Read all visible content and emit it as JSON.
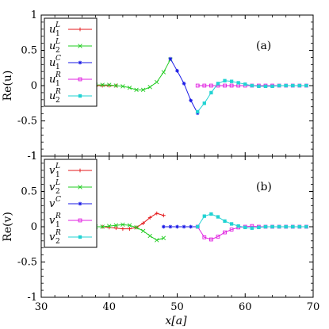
{
  "figure": {
    "xlabel": "x[a]",
    "panels": [
      {
        "tag": "(a)",
        "ylabel": "Re(u)"
      },
      {
        "tag": "(b)",
        "ylabel": "Re(v)"
      }
    ]
  },
  "chart_data": [
    {
      "type": "line",
      "panel_label": "(a)",
      "xlabel": "x[a]",
      "ylabel": "Re(u)",
      "xlim": [
        30,
        70
      ],
      "ylim": [
        -1,
        1
      ],
      "xticks": [
        "30",
        "40",
        "50",
        "60",
        "70"
      ],
      "yticks": [
        "1",
        "0.5",
        "0",
        "-0.5",
        "-1"
      ],
      "grid": false,
      "legend_position": "top-left",
      "series": [
        {
          "name": "u1L",
          "label_base": "u",
          "label_sub": "1",
          "label_sup": "L",
          "color": "#e41a1c",
          "marker": "plus",
          "x": [
            37,
            38,
            39,
            40,
            41
          ],
          "y": [
            0.0,
            0.0,
            0.0,
            0.0,
            0.0
          ]
        },
        {
          "name": "u2L",
          "label_base": "u",
          "label_sub": "2",
          "label_sup": "L",
          "color": "#22cc22",
          "marker": "x",
          "x": [
            37,
            38,
            39,
            40,
            41,
            42,
            43,
            44,
            45,
            46,
            47,
            48,
            49
          ],
          "y": [
            0.01,
            0.01,
            0.01,
            0.01,
            0.0,
            -0.01,
            -0.03,
            -0.06,
            -0.06,
            -0.02,
            0.05,
            0.19,
            0.37
          ]
        },
        {
          "name": "u1C",
          "label_base": "u",
          "label_sub": "1",
          "label_sup": "C",
          "color": "#1a1ae6",
          "marker": "asterisk",
          "x": [
            49,
            50,
            51,
            52,
            53
          ],
          "y": [
            0.38,
            0.21,
            0.03,
            -0.21,
            -0.39
          ]
        },
        {
          "name": "u1R",
          "label_base": "u",
          "label_sub": "1",
          "label_sup": "R",
          "color": "#e020e0",
          "marker": "square",
          "x": [
            53,
            54,
            55,
            56,
            57,
            58,
            59,
            60,
            61,
            62,
            63,
            64,
            65,
            66,
            67,
            68,
            69
          ],
          "y": [
            0.0,
            0.0,
            0.0,
            0.0,
            0.0,
            0.0,
            0.0,
            0.0,
            0.0,
            0.0,
            0.0,
            0.0,
            0.0,
            0.0,
            0.0,
            0.0,
            0.0
          ]
        },
        {
          "name": "u2R",
          "label_base": "u",
          "label_sub": "2",
          "label_sup": "R",
          "color": "#22d3d3",
          "marker": "filled-square",
          "x": [
            53,
            54,
            55,
            56,
            57,
            58,
            59,
            60,
            61,
            62,
            63,
            64,
            65,
            66,
            67,
            68,
            69
          ],
          "y": [
            -0.37,
            -0.25,
            -0.1,
            0.03,
            0.07,
            0.06,
            0.04,
            0.02,
            0.0,
            -0.01,
            -0.01,
            -0.01,
            0.0,
            0.0,
            0.0,
            0.0,
            0.0
          ]
        }
      ]
    },
    {
      "type": "line",
      "panel_label": "(b)",
      "xlabel": "x[a]",
      "ylabel": "Re(v)",
      "xlim": [
        30,
        70
      ],
      "ylim": [
        -1,
        1
      ],
      "xticks": [
        "30",
        "40",
        "50",
        "60",
        "70"
      ],
      "yticks": [
        "1",
        "0.5",
        "0",
        "-0.5",
        "-1"
      ],
      "grid": false,
      "legend_position": "top-left",
      "series": [
        {
          "name": "v1L",
          "label_base": "v",
          "label_sub": "1",
          "label_sup": "L",
          "color": "#e41a1c",
          "marker": "plus",
          "x": [
            37,
            38,
            39,
            40,
            41,
            42,
            43,
            44,
            45,
            46,
            47,
            48
          ],
          "y": [
            0.0,
            0.0,
            0.0,
            -0.01,
            -0.02,
            -0.03,
            -0.03,
            -0.01,
            0.05,
            0.13,
            0.19,
            0.16
          ]
        },
        {
          "name": "v2L",
          "label_base": "v",
          "label_sub": "2",
          "label_sup": "L",
          "color": "#22cc22",
          "marker": "x",
          "x": [
            37,
            38,
            39,
            40,
            41,
            42,
            43,
            44,
            45,
            46,
            47,
            48
          ],
          "y": [
            0.0,
            0.0,
            0.0,
            0.01,
            0.02,
            0.03,
            0.02,
            -0.01,
            -0.06,
            -0.13,
            -0.19,
            -0.16
          ]
        },
        {
          "name": "vC",
          "label_base": "v",
          "label_sub": "",
          "label_sup": "C",
          "color": "#1a1ae6",
          "marker": "asterisk",
          "x": [
            48,
            49,
            50,
            51,
            52,
            53
          ],
          "y": [
            0.0,
            0.0,
            0.0,
            0.0,
            0.0,
            0.0
          ]
        },
        {
          "name": "v1R",
          "label_base": "v",
          "label_sub": "1",
          "label_sup": "R",
          "color": "#e020e0",
          "marker": "square",
          "x": [
            53,
            54,
            55,
            56,
            57,
            58,
            59,
            60,
            61,
            62,
            63,
            64,
            65,
            66,
            67,
            68,
            69
          ],
          "y": [
            0.0,
            -0.15,
            -0.18,
            -0.14,
            -0.08,
            -0.04,
            -0.01,
            0.0,
            0.01,
            0.0,
            0.0,
            0.0,
            0.0,
            0.0,
            0.0,
            0.0,
            0.0
          ]
        },
        {
          "name": "v2R",
          "label_base": "v",
          "label_sub": "2",
          "label_sup": "R",
          "color": "#22d3d3",
          "marker": "filled-square",
          "x": [
            53,
            54,
            55,
            56,
            57,
            58,
            59,
            60,
            61,
            62,
            63,
            64,
            65,
            66,
            67,
            68,
            69
          ],
          "y": [
            0.0,
            0.15,
            0.18,
            0.14,
            0.08,
            0.04,
            0.01,
            -0.01,
            -0.02,
            -0.01,
            0.0,
            0.0,
            0.0,
            0.0,
            0.0,
            0.0,
            0.0
          ]
        }
      ]
    }
  ]
}
